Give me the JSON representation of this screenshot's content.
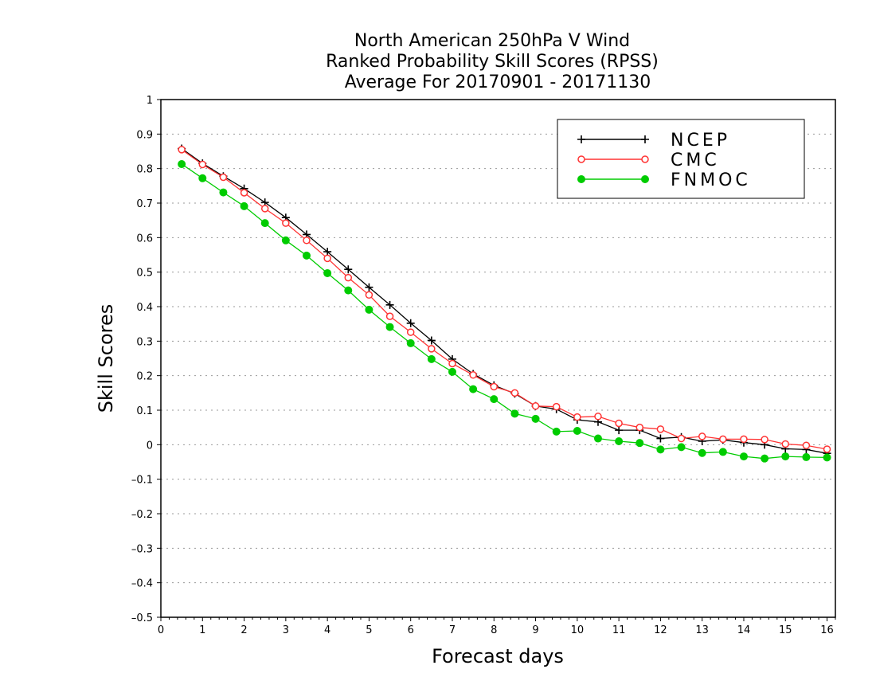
{
  "chart_data": {
    "type": "line",
    "title": [
      "North American 250hPa V Wind",
      "Ranked Probability Skill Scores (RPSS)",
      "Average For 20170901 - 20171130"
    ],
    "xlabel": "Forecast days",
    "ylabel": "Skill Scores",
    "xlim": [
      0,
      16.2
    ],
    "ylim": [
      -0.5,
      1
    ],
    "xticks": [
      0,
      1,
      2,
      3,
      4,
      5,
      6,
      7,
      8,
      9,
      10,
      11,
      12,
      13,
      14,
      15,
      16
    ],
    "xtick_labels": [
      "0",
      "1",
      "2",
      "3",
      "4",
      "5",
      "6",
      "7",
      "8",
      "9",
      "10",
      "11",
      "12",
      "13",
      "14",
      "15",
      "16"
    ],
    "yticks": [
      -0.5,
      -0.4,
      -0.3,
      -0.2,
      -0.1,
      0,
      0.1,
      0.2,
      0.3,
      0.4,
      0.5,
      0.6,
      0.7,
      0.8,
      0.9,
      1
    ],
    "ytick_labels": [
      "–0.5",
      "–0.4",
      "–0.3",
      "–0.2",
      "–0.1",
      "0",
      "0.1",
      "0.2",
      "0.3",
      "0.4",
      "0.5",
      "0.6",
      "0.7",
      "0.8",
      "0.9",
      "1"
    ],
    "grid": true,
    "legend_position": "top-right",
    "x": [
      0.5,
      1,
      1.5,
      2,
      2.5,
      3,
      3.5,
      4,
      4.5,
      5,
      5.5,
      6,
      6.5,
      7,
      7.5,
      8,
      8.5,
      9,
      9.5,
      10,
      10.5,
      11,
      11.5,
      12,
      12.5,
      13,
      13.5,
      14,
      14.5,
      15,
      15.5,
      16
    ],
    "series": [
      {
        "name": "NCEP",
        "color": "#000000",
        "marker": "plus",
        "values": [
          0.858,
          0.815,
          0.778,
          0.742,
          0.702,
          0.658,
          0.609,
          0.559,
          0.508,
          0.456,
          0.405,
          0.352,
          0.302,
          0.248,
          0.205,
          0.172,
          0.148,
          0.112,
          0.103,
          0.072,
          0.066,
          0.042,
          0.042,
          0.018,
          0.022,
          0.01,
          0.014,
          0.006,
          0.0,
          -0.012,
          -0.014,
          -0.025
        ]
      },
      {
        "name": "CMC",
        "color": "#ff3333",
        "marker": "open-circle",
        "values": [
          0.855,
          0.812,
          0.775,
          0.73,
          0.684,
          0.642,
          0.592,
          0.54,
          0.484,
          0.434,
          0.372,
          0.326,
          0.278,
          0.235,
          0.202,
          0.168,
          0.15,
          0.112,
          0.11,
          0.08,
          0.082,
          0.062,
          0.05,
          0.045,
          0.018,
          0.024,
          0.016,
          0.016,
          0.015,
          0.002,
          -0.002,
          -0.013
        ]
      },
      {
        "name": "FNMOC",
        "color": "#00cc00",
        "marker": "filled-circle",
        "values": [
          0.813,
          0.772,
          0.731,
          0.691,
          0.642,
          0.592,
          0.548,
          0.497,
          0.447,
          0.391,
          0.341,
          0.294,
          0.248,
          0.211,
          0.161,
          0.132,
          0.09,
          0.075,
          0.038,
          0.04,
          0.018,
          0.01,
          0.005,
          -0.014,
          -0.007,
          -0.024,
          -0.021,
          -0.034,
          -0.04,
          -0.034,
          -0.036,
          -0.037
        ]
      }
    ]
  }
}
